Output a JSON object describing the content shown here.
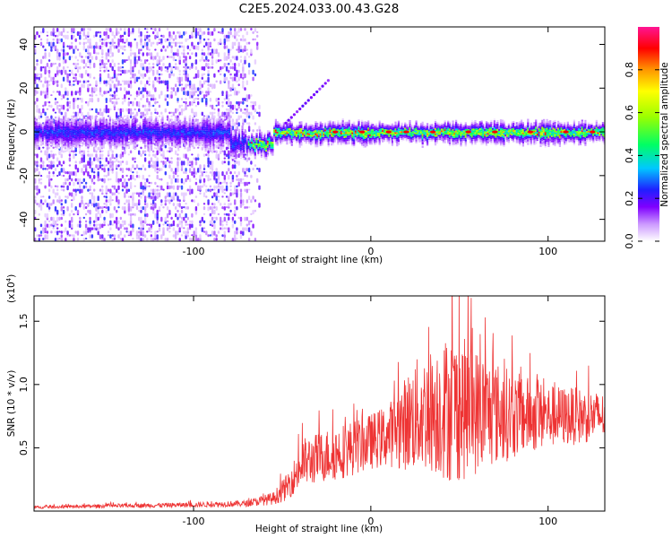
{
  "title": "C2E5.2024.033.00.43.G28",
  "chart_data": [
    {
      "type": "heatmap",
      "xlabel": "Height of straight line (km)",
      "ylabel": "Frequency (Hz)",
      "xlim": [
        -190,
        132
      ],
      "ylim": [
        -50,
        48
      ],
      "xticks": [
        -100,
        0,
        100
      ],
      "yticks": [
        -40,
        -20,
        0,
        20,
        40
      ],
      "colorbar": {
        "label": "Normalized spectral amplitude",
        "range": [
          0.0,
          1.0
        ],
        "ticks": [
          0.0,
          0.2,
          0.4,
          0.6,
          0.8
        ],
        "tick_labels": [
          "0.0",
          "0.2",
          "0.4",
          "0.6",
          "0.8"
        ],
        "colors": [
          "#ffffff",
          "#cc99ff",
          "#7f00ff",
          "#1f1fff",
          "#00c8ff",
          "#00ff64",
          "#9bff00",
          "#ffff00",
          "#ff9600",
          "#ff0000",
          "#ff1493"
        ]
      },
      "description_points": {
        "noise_region_x": [
          -190,
          -70
        ],
        "carrier_line_x": [
          -70,
          132
        ],
        "carrier_frequency": 0,
        "strong_peaks_x": [
          -20,
          -5,
          10,
          20,
          35,
          55,
          70,
          90,
          110,
          125
        ]
      },
      "grid": false
    },
    {
      "type": "line",
      "xlabel": "Height of straight line (km)",
      "ylabel": "SNR (10 * v/v)",
      "y_multiplier_label": "(x10",
      "y_multiplier_exp": "4",
      "y_multiplier_close": ")",
      "xlim": [
        -190,
        132
      ],
      "ylim": [
        0,
        17000
      ],
      "xticks": [
        -100,
        0,
        100
      ],
      "yticks": [
        5000,
        10000,
        15000
      ],
      "ytick_labels": [
        "0.5",
        "1.0",
        "1.5"
      ],
      "color": "#ee3333",
      "series": [
        {
          "x": [
            -190,
            -150,
            -100,
            -70,
            -55,
            -48,
            -42,
            -38,
            -30,
            -20,
            -10,
            0,
            10,
            18,
            25,
            35,
            45,
            55,
            65,
            80,
            100,
            120,
            132
          ],
          "y": [
            300,
            400,
            500,
            600,
            1000,
            1800,
            3000,
            3800,
            4200,
            4600,
            5000,
            5500,
            6000,
            6800,
            7500,
            8000,
            8200,
            8000,
            7800,
            7600,
            7500,
            7500,
            7500
          ],
          "spread": [
            100,
            150,
            200,
            250,
            500,
            1000,
            1500,
            2000,
            2000,
            2200,
            2200,
            2200,
            2500,
            3500,
            4500,
            5000,
            6000,
            5500,
            4500,
            3500,
            2500,
            2200,
            1800
          ]
        }
      ],
      "grid": false
    }
  ]
}
